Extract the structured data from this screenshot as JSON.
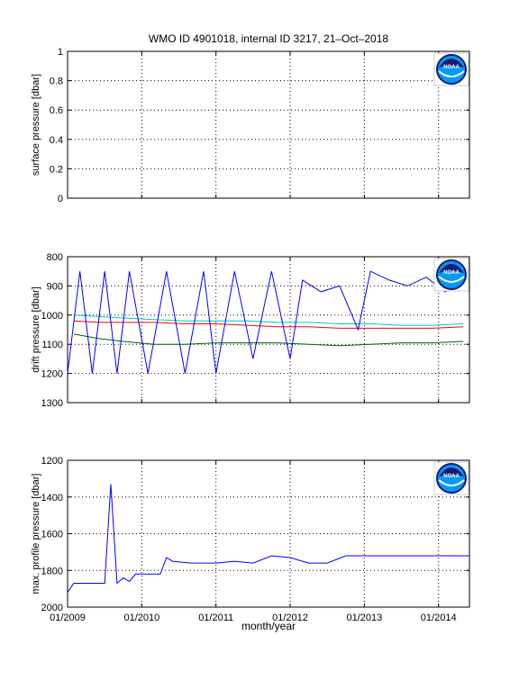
{
  "figure": {
    "title": "WMO ID 4901018, internal ID 3217, 21–Oct–2018",
    "xlabel": "month/year",
    "logo_text": "NOAA",
    "colors": {
      "blue": "#0000ff",
      "red": "#ff0000",
      "green": "#006600",
      "cyan": "#00c8c8",
      "logo_navy": "#1a1a6e",
      "logo_sky": "#0099ff"
    }
  },
  "chart_data": [
    {
      "type": "line",
      "ylabel": "surface pressure [dbar]",
      "ylim": [
        0,
        1
      ],
      "y_reversed": false,
      "yticks": [
        0,
        0.2,
        0.4,
        0.6,
        0.8,
        1
      ],
      "xlim": [
        "2009-01",
        "2014-06"
      ],
      "grid": true,
      "series": []
    },
    {
      "type": "line",
      "ylabel": "drift pressure [dbar]",
      "ylim": [
        800,
        1300
      ],
      "y_reversed": true,
      "yticks": [
        800,
        900,
        1000,
        1100,
        1200,
        1300
      ],
      "xlim": [
        "2009-01",
        "2014-06"
      ],
      "grid": true,
      "series": [
        {
          "color": "#00c8c8",
          "x": [
            "2009-02",
            "2009-06",
            "2009-10",
            "2010-03",
            "2010-08",
            "2011-01",
            "2011-06",
            "2011-11",
            "2012-04",
            "2012-09",
            "2013-02",
            "2013-07",
            "2013-12",
            "2014-05"
          ],
          "y": [
            1000,
            1005,
            1010,
            1015,
            1020,
            1020,
            1020,
            1025,
            1025,
            1030,
            1030,
            1035,
            1035,
            1030
          ]
        },
        {
          "color": "#ff0000",
          "x": [
            "2009-02",
            "2009-06",
            "2009-10",
            "2010-03",
            "2010-08",
            "2011-01",
            "2011-06",
            "2011-11",
            "2012-04",
            "2012-09",
            "2013-02",
            "2013-07",
            "2013-12",
            "2014-05"
          ],
          "y": [
            1020,
            1025,
            1025,
            1025,
            1030,
            1030,
            1035,
            1040,
            1040,
            1045,
            1045,
            1045,
            1045,
            1040
          ]
        },
        {
          "color": "#006600",
          "x": [
            "2009-02",
            "2009-06",
            "2009-10",
            "2010-03",
            "2010-08",
            "2011-01",
            "2011-06",
            "2011-11",
            "2012-04",
            "2012-09",
            "2013-02",
            "2013-07",
            "2013-12",
            "2014-05"
          ],
          "y": [
            1065,
            1080,
            1090,
            1100,
            1100,
            1095,
            1095,
            1095,
            1100,
            1105,
            1100,
            1095,
            1095,
            1090
          ]
        },
        {
          "color": "#0000ff",
          "x": [
            "2009-01",
            "2009-03",
            "2009-05",
            "2009-07",
            "2009-09",
            "2009-11",
            "2010-02",
            "2010-05",
            "2010-08",
            "2010-11",
            "2011-01",
            "2011-04",
            "2011-07",
            "2011-10",
            "2012-01",
            "2012-03",
            "2012-06",
            "2012-09",
            "2012-12",
            "2013-02",
            "2013-05",
            "2013-08",
            "2013-11",
            "2014-02",
            "2014-05"
          ],
          "y": [
            1200,
            850,
            1200,
            850,
            1200,
            850,
            1200,
            850,
            1200,
            850,
            1200,
            850,
            1150,
            850,
            1150,
            880,
            920,
            900,
            1050,
            850,
            880,
            900,
            870,
            920,
            900
          ]
        }
      ]
    },
    {
      "type": "line",
      "ylabel": "max. profile pressure [dbar]",
      "ylim": [
        1200,
        2000
      ],
      "y_reversed": true,
      "yticks": [
        1200,
        1400,
        1600,
        1800,
        2000
      ],
      "xlim": [
        "2009-01",
        "2014-06"
      ],
      "grid": true,
      "series": [
        {
          "color": "#0000ff",
          "x": [
            "2009-01",
            "2009-02",
            "2009-03",
            "2009-04",
            "2009-05",
            "2009-06",
            "2009-07",
            "2009-08",
            "2009-09",
            "2009-10",
            "2009-11",
            "2009-12",
            "2010-01",
            "2010-02",
            "2010-03",
            "2010-04",
            "2010-05",
            "2010-06",
            "2010-09",
            "2011-01",
            "2011-04",
            "2011-07",
            "2011-10",
            "2012-01",
            "2012-04",
            "2012-07",
            "2012-10",
            "2013-01",
            "2013-04",
            "2013-07",
            "2013-10",
            "2014-01",
            "2014-06"
          ],
          "y": [
            1920,
            1870,
            1870,
            1870,
            1870,
            1870,
            1870,
            1330,
            1870,
            1840,
            1860,
            1820,
            1820,
            1820,
            1820,
            1820,
            1730,
            1750,
            1760,
            1760,
            1750,
            1760,
            1720,
            1730,
            1760,
            1760,
            1720,
            1720,
            1720,
            1720,
            1720,
            1720,
            1720
          ]
        }
      ]
    }
  ],
  "xticks": [
    "01/2009",
    "01/2010",
    "01/2011",
    "01/2012",
    "01/2013",
    "01/2014"
  ]
}
